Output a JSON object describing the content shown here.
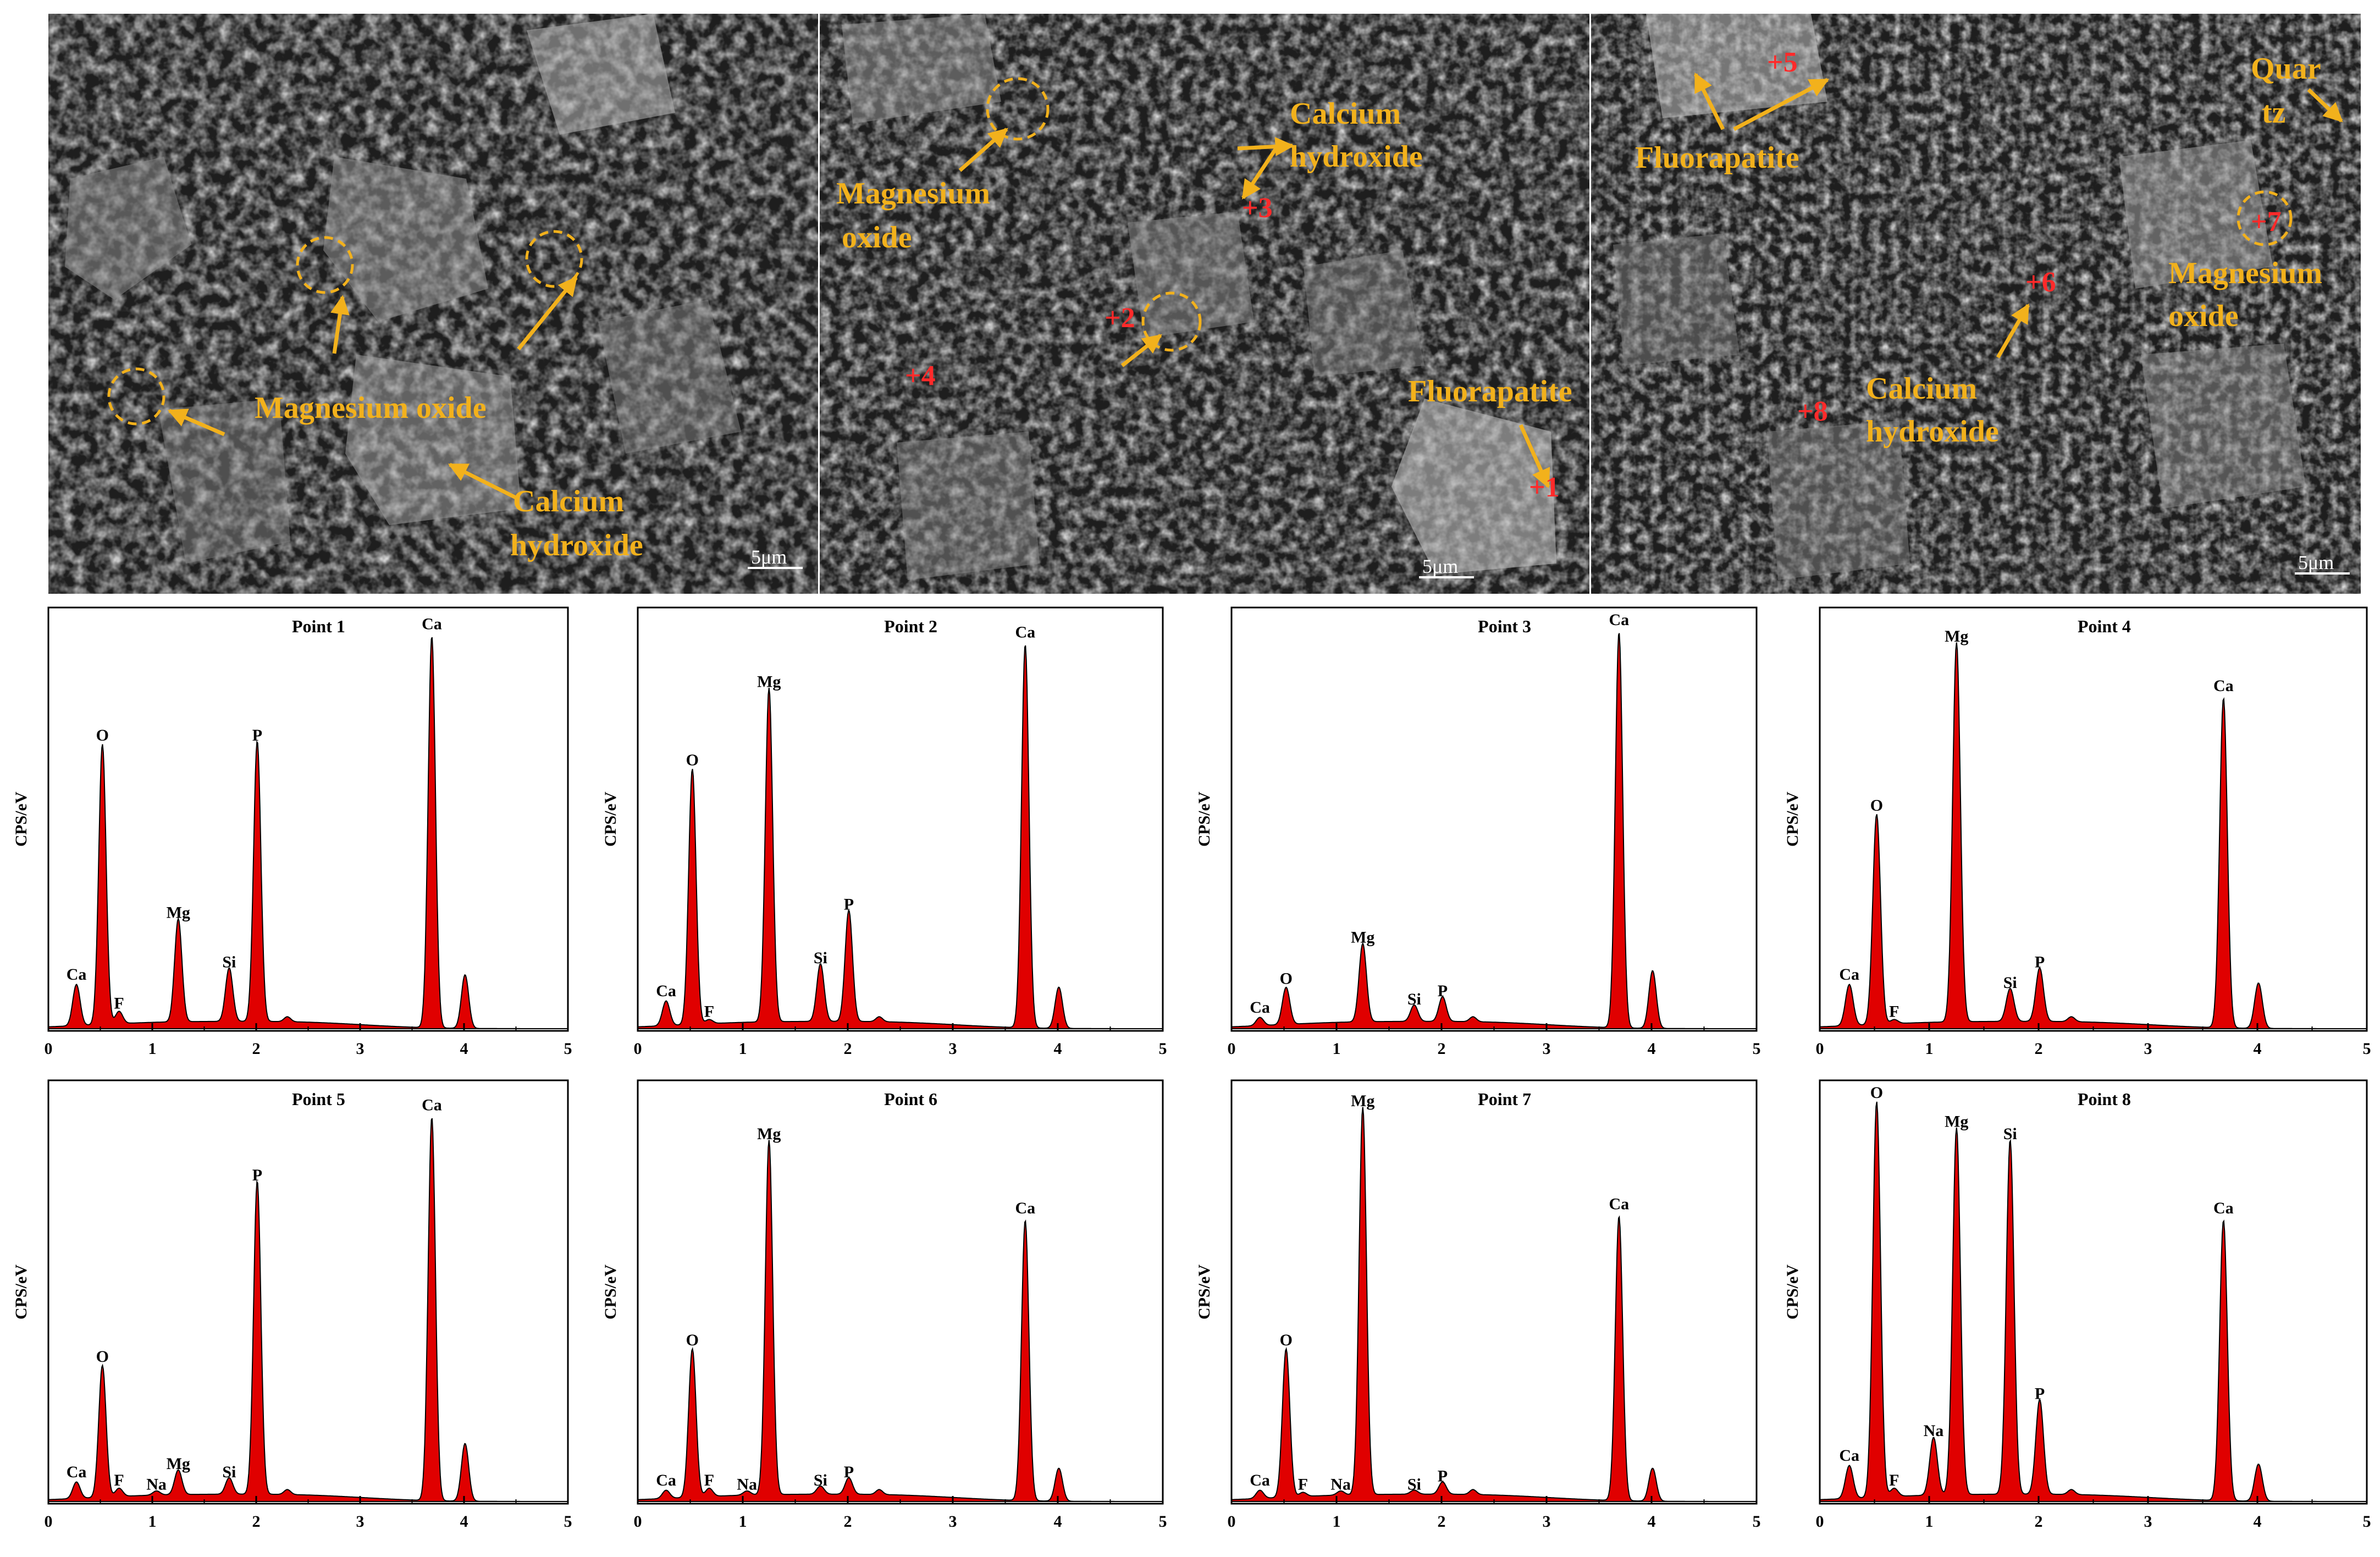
{
  "colors": {
    "annotation": "#f2b11c",
    "point_marker": "#ff2a2a",
    "spectrum_fill": "#e00000",
    "spectrum_line": "#000000",
    "sem_background": "#202020"
  },
  "sem_images": [
    {
      "scale_bar": "5μm",
      "labels": [
        {
          "id": "a",
          "lines": [
            "Magnesium oxide"
          ]
        },
        {
          "id": "b",
          "lines": [
            "Calcium",
            "hydroxide"
          ]
        }
      ],
      "points": []
    },
    {
      "scale_bar": "5μm",
      "labels": [
        {
          "id": "a",
          "lines": [
            "Magnesium",
            "oxide"
          ]
        },
        {
          "id": "b",
          "lines": [
            "Calcium",
            "hydroxide"
          ]
        },
        {
          "id": "c",
          "lines": [
            "Fluorapatite"
          ]
        }
      ],
      "points": [
        "+3",
        "+2",
        "+4",
        "+1"
      ]
    },
    {
      "scale_bar": "5μm",
      "labels": [
        {
          "id": "a",
          "lines": [
            "Fluorapatite"
          ]
        },
        {
          "id": "b",
          "lines": [
            "Quar",
            "tz"
          ]
        },
        {
          "id": "c",
          "lines": [
            "Magnesium",
            "oxide"
          ]
        },
        {
          "id": "d",
          "lines": [
            "Calcium",
            "hydroxide"
          ]
        }
      ],
      "points": [
        "+5",
        "+7",
        "+6",
        "+8"
      ]
    }
  ],
  "chart_data": [
    {
      "type": "area",
      "title": "Point 1",
      "ylabel": "CPS/eV",
      "xlim": [
        0,
        5
      ],
      "xticks": [
        0,
        1,
        2,
        3,
        4,
        5
      ],
      "peaks": [
        {
          "el": "Ca",
          "x": 0.27,
          "h": 0.1
        },
        {
          "el": "O",
          "x": 0.52,
          "h": 0.68
        },
        {
          "el": "F",
          "x": 0.68,
          "h": 0.03
        },
        {
          "el": "Mg",
          "x": 1.25,
          "h": 0.25
        },
        {
          "el": "Si",
          "x": 1.74,
          "h": 0.13
        },
        {
          "el": "P",
          "x": 2.01,
          "h": 0.68
        },
        {
          "el": "Ca",
          "x": 3.69,
          "h": 0.95
        },
        {
          "el": "",
          "x": 4.01,
          "h": 0.13
        }
      ]
    },
    {
      "type": "area",
      "title": "Point 2",
      "ylabel": "CPS/eV",
      "xlim": [
        0,
        5
      ],
      "xticks": [
        0,
        1,
        2,
        3,
        4,
        5
      ],
      "peaks": [
        {
          "el": "Ca",
          "x": 0.27,
          "h": 0.06
        },
        {
          "el": "O",
          "x": 0.52,
          "h": 0.62
        },
        {
          "el": "F",
          "x": 0.68,
          "h": 0.01
        },
        {
          "el": "Mg",
          "x": 1.25,
          "h": 0.81
        },
        {
          "el": "Si",
          "x": 1.74,
          "h": 0.14
        },
        {
          "el": "P",
          "x": 2.01,
          "h": 0.27
        },
        {
          "el": "Ca",
          "x": 3.69,
          "h": 0.93
        },
        {
          "el": "",
          "x": 4.01,
          "h": 0.1
        }
      ]
    },
    {
      "type": "area",
      "title": "Point 3",
      "ylabel": "CPS/eV",
      "xlim": [
        0,
        5
      ],
      "xticks": [
        0,
        1,
        2,
        3,
        4,
        5
      ],
      "peaks": [
        {
          "el": "Ca",
          "x": 0.27,
          "h": 0.02
        },
        {
          "el": "O",
          "x": 0.52,
          "h": 0.09
        },
        {
          "el": "Mg",
          "x": 1.25,
          "h": 0.19
        },
        {
          "el": "Si",
          "x": 1.74,
          "h": 0.04
        },
        {
          "el": "P",
          "x": 2.01,
          "h": 0.06
        },
        {
          "el": "Ca",
          "x": 3.69,
          "h": 0.96
        },
        {
          "el": "",
          "x": 4.01,
          "h": 0.14
        }
      ]
    },
    {
      "type": "area",
      "title": "Point 4",
      "ylabel": "CPS/eV",
      "xlim": [
        0,
        5
      ],
      "xticks": [
        0,
        1,
        2,
        3,
        4,
        5
      ],
      "peaks": [
        {
          "el": "Ca",
          "x": 0.27,
          "h": 0.1
        },
        {
          "el": "O",
          "x": 0.52,
          "h": 0.51
        },
        {
          "el": "F",
          "x": 0.68,
          "h": 0.01
        },
        {
          "el": "Mg",
          "x": 1.25,
          "h": 0.92
        },
        {
          "el": "Si",
          "x": 1.74,
          "h": 0.08
        },
        {
          "el": "P",
          "x": 2.01,
          "h": 0.13
        },
        {
          "el": "Ca",
          "x": 3.69,
          "h": 0.8
        },
        {
          "el": "",
          "x": 4.01,
          "h": 0.11
        }
      ]
    },
    {
      "type": "area",
      "title": "Point 5",
      "ylabel": "CPS/eV",
      "xlim": [
        0,
        5
      ],
      "xticks": [
        0,
        1,
        2,
        3,
        4,
        5
      ],
      "peaks": [
        {
          "el": "Ca",
          "x": 0.27,
          "h": 0.04
        },
        {
          "el": "O",
          "x": 0.52,
          "h": 0.32
        },
        {
          "el": "F",
          "x": 0.68,
          "h": 0.02
        },
        {
          "el": "Na",
          "x": 1.04,
          "h": 0.01
        },
        {
          "el": "Mg",
          "x": 1.25,
          "h": 0.06
        },
        {
          "el": "Si",
          "x": 1.74,
          "h": 0.04
        },
        {
          "el": "P",
          "x": 2.01,
          "h": 0.76
        },
        {
          "el": "Ca",
          "x": 3.69,
          "h": 0.93
        },
        {
          "el": "",
          "x": 4.01,
          "h": 0.14
        }
      ]
    },
    {
      "type": "area",
      "title": "Point 6",
      "ylabel": "CPS/eV",
      "xlim": [
        0,
        5
      ],
      "xticks": [
        0,
        1,
        2,
        3,
        4,
        5
      ],
      "peaks": [
        {
          "el": "Ca",
          "x": 0.27,
          "h": 0.02
        },
        {
          "el": "O",
          "x": 0.52,
          "h": 0.36
        },
        {
          "el": "F",
          "x": 0.68,
          "h": 0.02
        },
        {
          "el": "Na",
          "x": 1.04,
          "h": 0.01
        },
        {
          "el": "Mg",
          "x": 1.25,
          "h": 0.86
        },
        {
          "el": "Si",
          "x": 1.74,
          "h": 0.02
        },
        {
          "el": "P",
          "x": 2.01,
          "h": 0.04
        },
        {
          "el": "Ca",
          "x": 3.69,
          "h": 0.68
        },
        {
          "el": "",
          "x": 4.01,
          "h": 0.08
        }
      ]
    },
    {
      "type": "area",
      "title": "Point 7",
      "ylabel": "CPS/eV",
      "xlim": [
        0,
        5
      ],
      "xticks": [
        0,
        1,
        2,
        3,
        4,
        5
      ],
      "peaks": [
        {
          "el": "Ca",
          "x": 0.27,
          "h": 0.02
        },
        {
          "el": "O",
          "x": 0.52,
          "h": 0.36
        },
        {
          "el": "F",
          "x": 0.68,
          "h": 0.01
        },
        {
          "el": "Na",
          "x": 1.04,
          "h": 0.01
        },
        {
          "el": "Mg",
          "x": 1.25,
          "h": 0.94
        },
        {
          "el": "Si",
          "x": 1.74,
          "h": 0.01
        },
        {
          "el": "P",
          "x": 2.01,
          "h": 0.03
        },
        {
          "el": "Ca",
          "x": 3.69,
          "h": 0.69
        },
        {
          "el": "",
          "x": 4.01,
          "h": 0.08
        }
      ]
    },
    {
      "type": "area",
      "title": "Point 8",
      "ylabel": "CPS/eV",
      "xlim": [
        0,
        5
      ],
      "xticks": [
        0,
        1,
        2,
        3,
        4,
        5
      ],
      "peaks": [
        {
          "el": "Ca",
          "x": 0.27,
          "h": 0.08
        },
        {
          "el": "O",
          "x": 0.52,
          "h": 0.96
        },
        {
          "el": "F",
          "x": 0.68,
          "h": 0.02
        },
        {
          "el": "Na",
          "x": 1.04,
          "h": 0.14
        },
        {
          "el": "Mg",
          "x": 1.25,
          "h": 0.89
        },
        {
          "el": "Si",
          "x": 1.74,
          "h": 0.86
        },
        {
          "el": "P",
          "x": 2.01,
          "h": 0.23
        },
        {
          "el": "Ca",
          "x": 3.69,
          "h": 0.68
        },
        {
          "el": "",
          "x": 4.01,
          "h": 0.09
        }
      ]
    }
  ]
}
